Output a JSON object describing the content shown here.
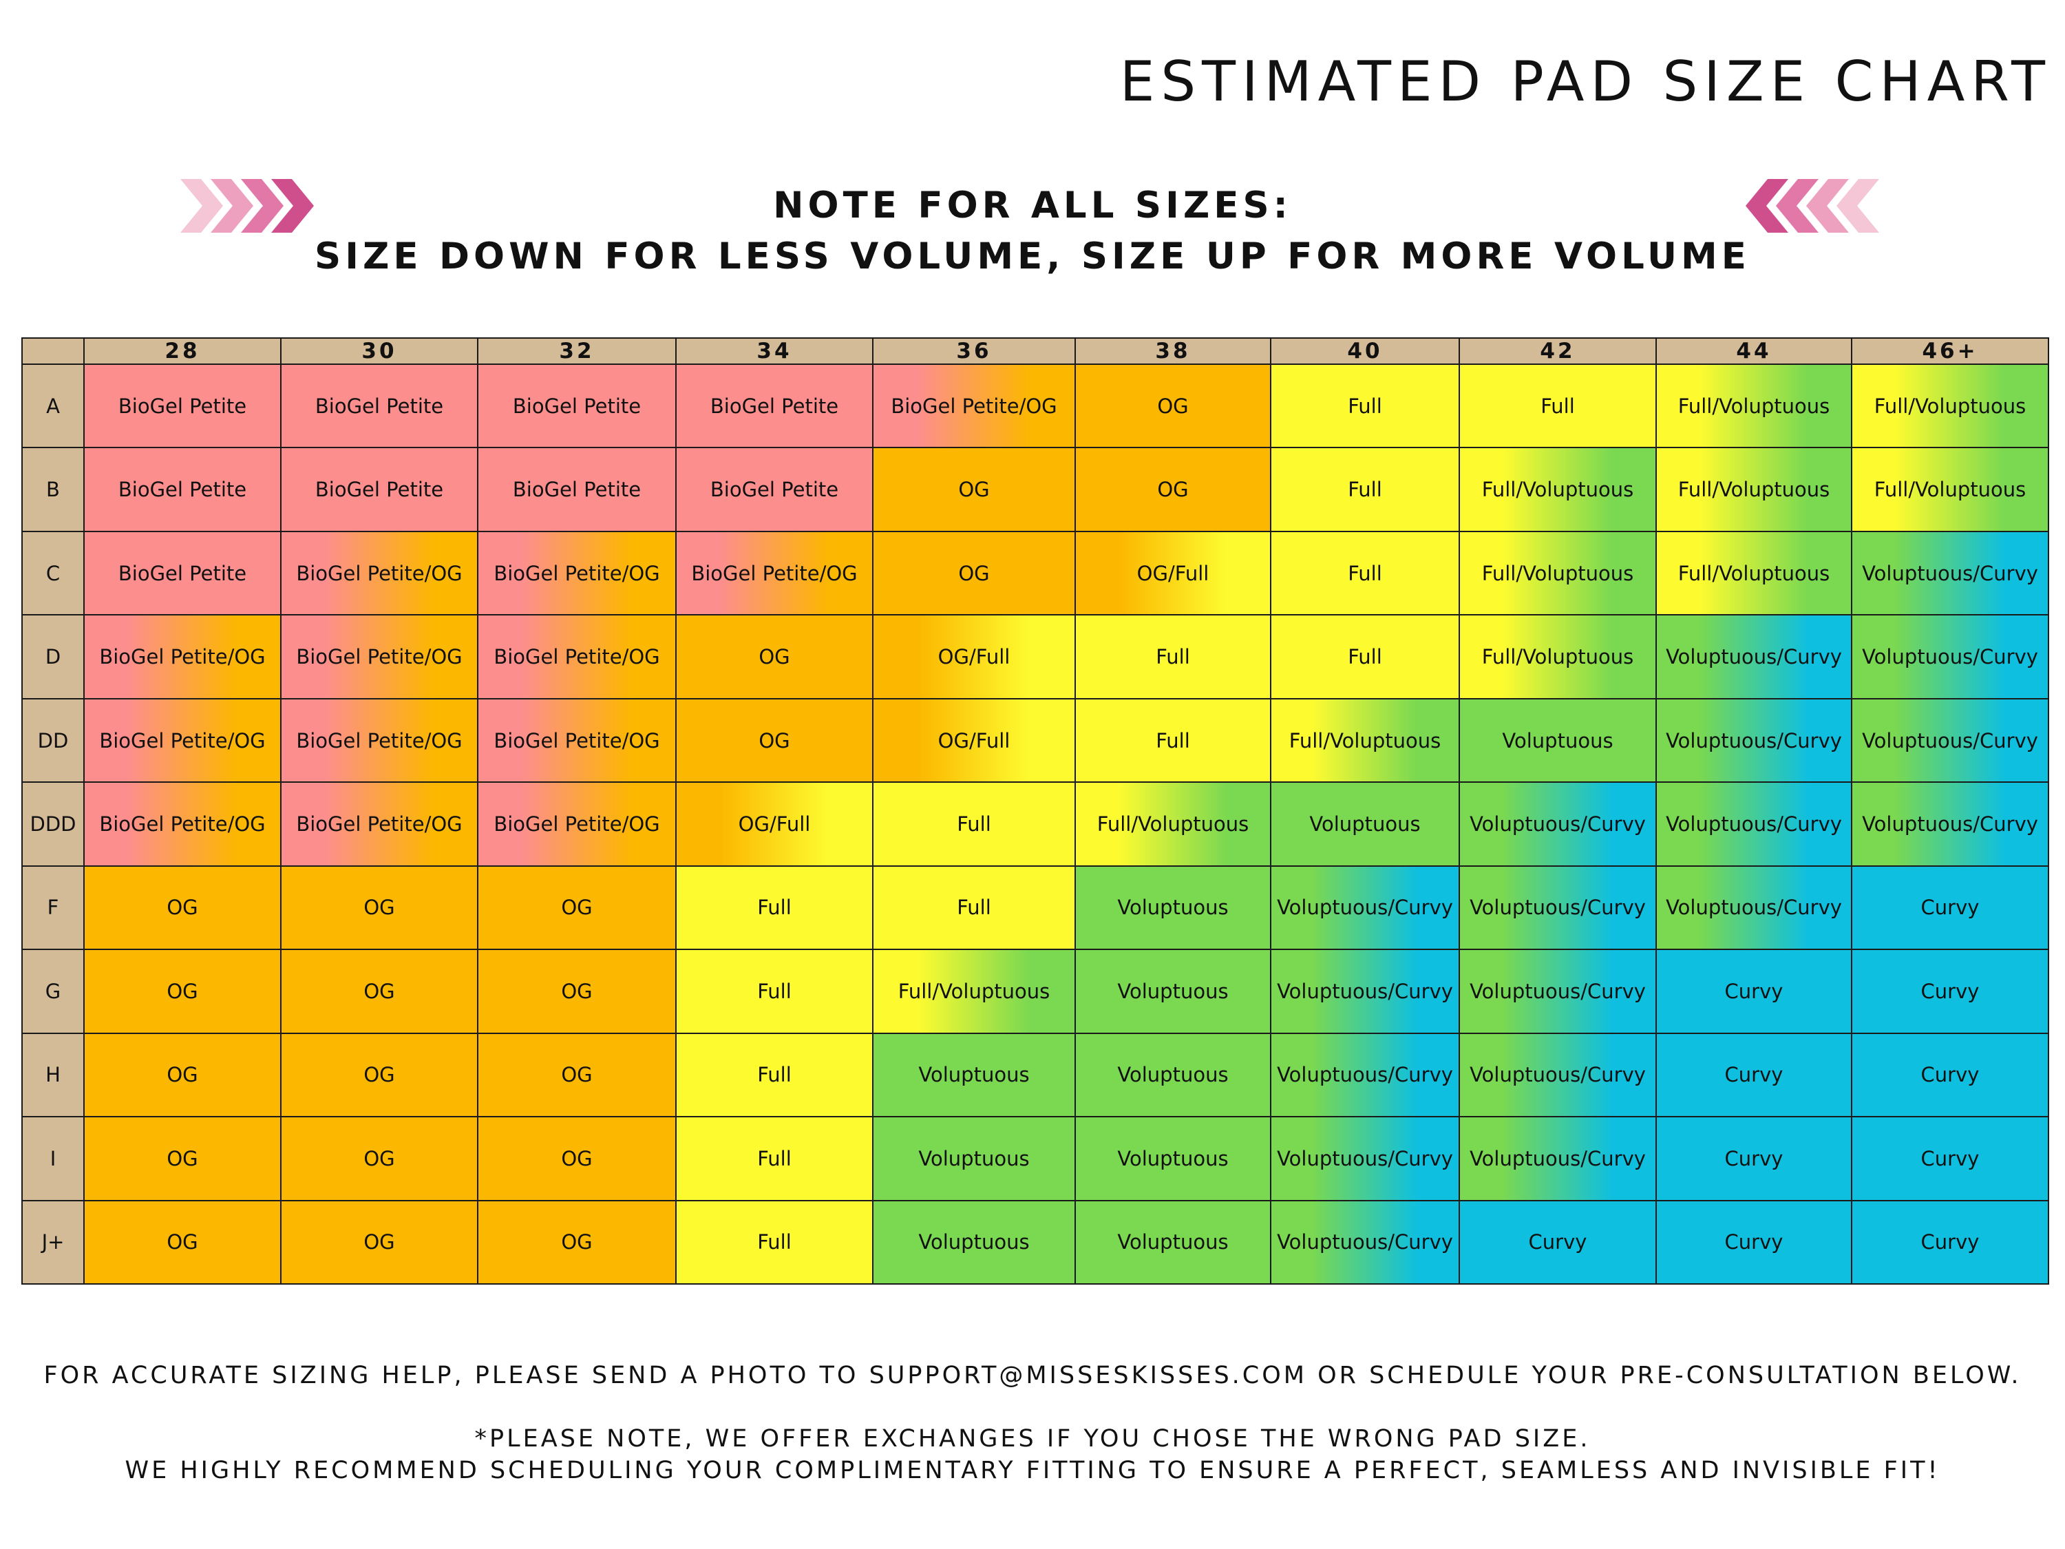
{
  "title": "ESTIMATED PAD SIZE CHART",
  "note": {
    "line1": "NOTE FOR ALL SIZES:",
    "line2": "SIZE DOWN FOR LESS VOLUME, SIZE UP FOR MORE VOLUME"
  },
  "chevron_colors": [
    "#f4c6d6",
    "#eea0bf",
    "#e278a8",
    "#cf4f8d"
  ],
  "colors": {
    "BioGel Petite": "#fd8e8e",
    "OG": "#fcb700",
    "Full": "#fdfb30",
    "Voluptuous": "#7ad851",
    "Curvy": "#0fbfdf",
    "header": "#d4bb98"
  },
  "chart_data": {
    "type": "table",
    "title": "ESTIMATED PAD SIZE CHART",
    "columns": [
      "28",
      "30",
      "32",
      "34",
      "36",
      "38",
      "40",
      "42",
      "44",
      "46+"
    ],
    "rows": [
      {
        "label": "A",
        "cells": [
          "BioGel Petite",
          "BioGel Petite",
          "BioGel Petite",
          "BioGel Petite",
          "BioGel Petite/OG",
          "OG",
          "Full",
          "Full",
          "Full/Voluptuous",
          "Full/Voluptuous"
        ]
      },
      {
        "label": "B",
        "cells": [
          "BioGel Petite",
          "BioGel Petite",
          "BioGel Petite",
          "BioGel Petite",
          "OG",
          "OG",
          "Full",
          "Full/Voluptuous",
          "Full/Voluptuous",
          "Full/Voluptuous"
        ]
      },
      {
        "label": "C",
        "cells": [
          "BioGel Petite",
          "BioGel Petite/OG",
          "BioGel Petite/OG",
          "BioGel Petite/OG",
          "OG",
          "OG/Full",
          "Full",
          "Full/Voluptuous",
          "Full/Voluptuous",
          "Voluptuous/Curvy"
        ]
      },
      {
        "label": "D",
        "cells": [
          "BioGel Petite/OG",
          "BioGel Petite/OG",
          "BioGel Petite/OG",
          "OG",
          "OG/Full",
          "Full",
          "Full",
          "Full/Voluptuous",
          "Voluptuous/Curvy",
          "Voluptuous/Curvy"
        ]
      },
      {
        "label": "DD",
        "cells": [
          "BioGel Petite/OG",
          "BioGel Petite/OG",
          "BioGel Petite/OG",
          "OG",
          "OG/Full",
          "Full",
          "Full/Voluptuous",
          "Voluptuous",
          "Voluptuous/Curvy",
          "Voluptuous/Curvy"
        ]
      },
      {
        "label": "DDD",
        "cells": [
          "BioGel Petite/OG",
          "BioGel Petite/OG",
          "BioGel Petite/OG",
          "OG/Full",
          "Full",
          "Full/Voluptuous",
          "Voluptuous",
          "Voluptuous/Curvy",
          "Voluptuous/Curvy",
          "Voluptuous/Curvy"
        ]
      },
      {
        "label": "F",
        "cells": [
          "OG",
          "OG",
          "OG",
          "Full",
          "Full",
          "Voluptuous",
          "Voluptuous/Curvy",
          "Voluptuous/Curvy",
          "Voluptuous/Curvy",
          "Curvy"
        ]
      },
      {
        "label": "G",
        "cells": [
          "OG",
          "OG",
          "OG",
          "Full",
          "Full/Voluptuous",
          "Voluptuous",
          "Voluptuous/Curvy",
          "Voluptuous/Curvy",
          "Curvy",
          "Curvy"
        ]
      },
      {
        "label": "H",
        "cells": [
          "OG",
          "OG",
          "OG",
          "Full",
          "Voluptuous",
          "Voluptuous",
          "Voluptuous/Curvy",
          "Voluptuous/Curvy",
          "Curvy",
          "Curvy"
        ]
      },
      {
        "label": "I",
        "cells": [
          "OG",
          "OG",
          "OG",
          "Full",
          "Voluptuous",
          "Voluptuous",
          "Voluptuous/Curvy",
          "Voluptuous/Curvy",
          "Curvy",
          "Curvy"
        ]
      },
      {
        "label": "J+",
        "cells": [
          "OG",
          "OG",
          "OG",
          "Full",
          "Voluptuous",
          "Voluptuous",
          "Voluptuous/Curvy",
          "Curvy",
          "Curvy",
          "Curvy"
        ]
      }
    ]
  },
  "footer": {
    "line1": "FOR ACCURATE SIZING HELP, PLEASE SEND A PHOTO TO SUPPORT@MISSESKISSES.COM OR SCHEDULE YOUR PRE-CONSULTATION BELOW.",
    "line2": "*PLEASE NOTE, WE OFFER EXCHANGES IF YOU CHOSE THE WRONG PAD SIZE.",
    "line3": "WE HIGHLY RECOMMEND SCHEDULING YOUR COMPLIMENTARY FITTING TO ENSURE A PERFECT, SEAMLESS AND INVISIBLE FIT!"
  }
}
